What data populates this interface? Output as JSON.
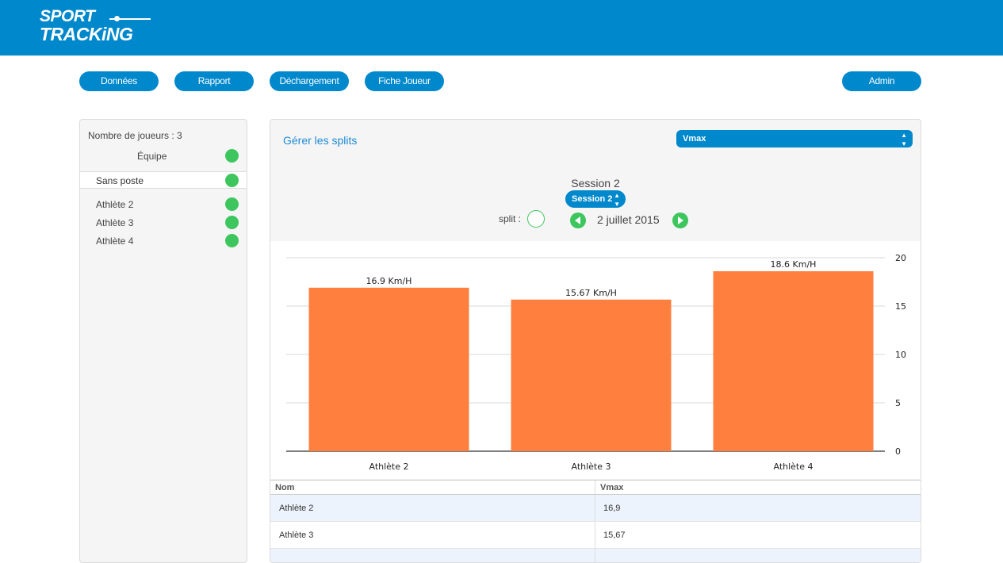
{
  "app": {
    "logo_line1": "SPORT",
    "logo_line2": "TRACKiNG"
  },
  "nav": {
    "donnees": "Données",
    "rapport": "Rapport",
    "dechargement": "Déchargement",
    "fiche_joueur": "Fiche Joueur",
    "admin": "Admin"
  },
  "sidebar": {
    "count_label": "Nombre de joueurs : 3",
    "team_label": "Équipe",
    "group_label": "Sans poste",
    "athletes": [
      "Athlète 2",
      "Athlète 3",
      "Athlète 4"
    ]
  },
  "main": {
    "splits_link": "Gérer les splits",
    "metric_selected": "Vmax",
    "session_title": "Session 2",
    "session_selected": "Session 2",
    "split_label": "split :",
    "date": "2 juillet 2015"
  },
  "chart_data": {
    "type": "bar",
    "categories": [
      "Athlète 2",
      "Athlète 3",
      "Athlète 4"
    ],
    "values": [
      16.9,
      15.67,
      18.6
    ],
    "data_labels": [
      "16.9 Km/H",
      "15.67 Km/H",
      "18.6 Km/H"
    ],
    "ylim": [
      0,
      20
    ],
    "yticks": [
      0,
      5,
      10,
      15,
      20
    ],
    "y_axis_side": "right",
    "grid": true,
    "bar_color": "#ff7f3f"
  },
  "table": {
    "columns": [
      "Nom",
      "Vmax"
    ],
    "rows": [
      [
        "Athlète 2",
        "16,9"
      ],
      [
        "Athlète 3",
        "15,67"
      ]
    ]
  },
  "colors": {
    "brand": "#0088cc",
    "status_green": "#3ec65e",
    "bar": "#ff7f3f",
    "link": "#1e8ad6"
  }
}
